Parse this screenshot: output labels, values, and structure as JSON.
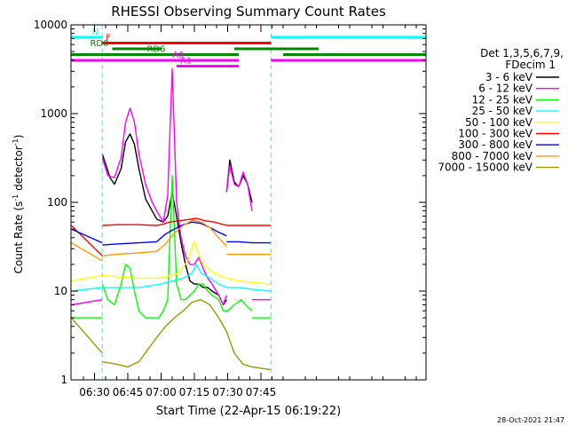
{
  "chart_data": {
    "type": "line",
    "title": "RHESSI Observing Summary Count Rates",
    "xlabel": "Start Time (22-Apr-15 06:19:22)",
    "ylabel_parts": {
      "main": "Count Rate (s",
      "sup1": "-1",
      "mid": " detector",
      "sup2": "-1",
      "end": ")"
    },
    "x_units": "minutes of day",
    "xlim": [
      379.4,
      539.4
    ],
    "ylim": [
      1,
      10000
    ],
    "y_scale": "log",
    "x_ticks": [
      {
        "value": 390,
        "label": "06:30"
      },
      {
        "value": 405,
        "label": "06:45"
      },
      {
        "value": 420,
        "label": "07:00"
      },
      {
        "value": 435,
        "label": "07:15"
      },
      {
        "value": 450,
        "label": "07:30"
      },
      {
        "value": 465,
        "label": "07:45"
      }
    ],
    "y_ticks": [
      {
        "value": 1,
        "label": "1"
      },
      {
        "value": 10,
        "label": "10"
      },
      {
        "value": 100,
        "label": "100"
      },
      {
        "value": 1000,
        "label": "1000"
      },
      {
        "value": 10000,
        "label": "10000"
      }
    ],
    "legend": {
      "placement": "right",
      "header": [
        "Det 1,3,5,6,7,9,",
        "FDecim 1"
      ]
    },
    "series": [
      {
        "name": "3 - 6 keV",
        "color": "#000000",
        "points": [
          [
            393.5,
            350
          ],
          [
            397,
            190
          ],
          [
            399,
            160
          ],
          [
            402,
            240
          ],
          [
            404,
            480
          ],
          [
            406,
            590
          ],
          [
            408,
            450
          ],
          [
            410,
            240
          ],
          [
            413,
            110
          ],
          [
            416,
            80
          ],
          [
            418,
            65
          ],
          [
            421,
            60
          ],
          [
            423,
            70
          ],
          [
            425,
            130
          ],
          [
            427,
            70
          ],
          [
            429,
            35
          ],
          [
            431,
            20
          ],
          [
            433,
            13
          ],
          [
            435,
            12
          ],
          [
            437,
            12
          ],
          [
            439,
            11
          ],
          [
            441,
            11
          ],
          [
            443,
            10
          ],
          [
            446,
            9
          ],
          [
            448,
            7
          ],
          [
            449.5,
            8
          ]
        ]
      },
      {
        "name": "3 - 6 keV",
        "color": "#000000",
        "points": [
          [
            449.5,
            130
          ],
          [
            451,
            300
          ],
          [
            453,
            170
          ],
          [
            455,
            150
          ],
          [
            457,
            200
          ],
          [
            459,
            160
          ],
          [
            461,
            100
          ]
        ]
      },
      {
        "name": "6 - 12 keV",
        "color": "#ff00ff",
        "points": [
          [
            393.5,
            320
          ],
          [
            396,
            200
          ],
          [
            399,
            190
          ],
          [
            402,
            320
          ],
          [
            404,
            800
          ],
          [
            406,
            1150
          ],
          [
            408,
            800
          ],
          [
            410,
            350
          ],
          [
            413,
            160
          ],
          [
            416,
            100
          ],
          [
            418,
            80
          ],
          [
            421,
            60
          ],
          [
            423,
            120
          ],
          [
            425,
            3200
          ],
          [
            427,
            100
          ],
          [
            429,
            40
          ],
          [
            431,
            25
          ],
          [
            433,
            20
          ],
          [
            435,
            20
          ],
          [
            437,
            24
          ],
          [
            439,
            18
          ],
          [
            441,
            14
          ],
          [
            443,
            12
          ],
          [
            446,
            9
          ],
          [
            448,
            7
          ],
          [
            449.5,
            9
          ]
        ]
      },
      {
        "name": "6 - 12 keV",
        "color": "#ff00ff",
        "points": [
          [
            449.5,
            130
          ],
          [
            451,
            260
          ],
          [
            453,
            160
          ],
          [
            455,
            150
          ],
          [
            457,
            220
          ],
          [
            459,
            160
          ],
          [
            461,
            80
          ]
        ]
      },
      {
        "name": "6 - 12 keV",
        "color": "#ff00ff",
        "points": [
          [
            461,
            8
          ],
          [
            469.5,
            8
          ]
        ]
      },
      {
        "name": "6 - 12 keV",
        "color": "#ff00ff",
        "points": [
          [
            379.5,
            7
          ],
          [
            393.5,
            8
          ]
        ]
      },
      {
        "name": "12 - 25 keV",
        "color": "#00ff00",
        "points": [
          [
            393.5,
            12
          ],
          [
            396,
            8
          ],
          [
            399,
            7
          ],
          [
            402,
            12
          ],
          [
            404,
            20
          ],
          [
            406,
            18
          ],
          [
            408,
            10
          ],
          [
            410,
            6
          ],
          [
            413,
            5
          ],
          [
            416,
            5
          ],
          [
            419,
            5
          ],
          [
            421,
            6
          ],
          [
            423,
            8
          ],
          [
            425,
            200
          ],
          [
            427,
            12
          ],
          [
            429,
            8
          ],
          [
            431,
            8
          ],
          [
            433,
            9
          ],
          [
            435,
            10
          ],
          [
            437,
            12
          ],
          [
            439,
            12
          ],
          [
            441,
            10
          ],
          [
            443,
            9
          ],
          [
            446,
            8
          ],
          [
            448,
            6
          ],
          [
            450,
            6
          ],
          [
            453,
            7
          ],
          [
            456,
            8
          ],
          [
            458,
            7
          ],
          [
            461,
            6
          ]
        ]
      },
      {
        "name": "12 - 25 keV",
        "color": "#00ff00",
        "points": [
          [
            461,
            5
          ],
          [
            469.5,
            5
          ]
        ]
      },
      {
        "name": "12 - 25 keV",
        "color": "#00ff00",
        "points": [
          [
            379.5,
            5
          ],
          [
            393.5,
            5
          ]
        ]
      },
      {
        "name": "25 - 50 keV",
        "color": "#00ffff",
        "points": [
          [
            379.5,
            10
          ],
          [
            393.5,
            11
          ],
          [
            400,
            11
          ],
          [
            410,
            11
          ],
          [
            420,
            12
          ],
          [
            425,
            13
          ],
          [
            430,
            14
          ],
          [
            434,
            16
          ],
          [
            436,
            20
          ],
          [
            438,
            16
          ],
          [
            442,
            14
          ],
          [
            446,
            12
          ],
          [
            449.5,
            11
          ],
          [
            455,
            11
          ],
          [
            461,
            10.5
          ],
          [
            469.5,
            10
          ]
        ]
      },
      {
        "name": "50 - 100 keV",
        "color": "#ffff00",
        "points": [
          [
            379.5,
            13
          ],
          [
            393.5,
            15
          ],
          [
            400,
            14.5
          ],
          [
            410,
            14
          ],
          [
            420,
            14
          ],
          [
            428,
            16
          ],
          [
            432,
            22
          ],
          [
            435,
            36
          ],
          [
            438,
            22
          ],
          [
            442,
            17
          ],
          [
            446,
            15
          ],
          [
            449.5,
            14
          ],
          [
            455,
            13
          ],
          [
            461,
            12.5
          ],
          [
            469.5,
            12
          ]
        ]
      },
      {
        "name": "100 - 300 keV",
        "color": "#ff0000",
        "points": [
          [
            379.5,
            55
          ],
          [
            393.5,
            25
          ]
        ]
      },
      {
        "name": "100 - 300 keV",
        "color": "#ff0000",
        "points": [
          [
            393.5,
            55
          ],
          [
            400,
            56
          ],
          [
            410,
            56
          ],
          [
            418,
            55
          ],
          [
            420,
            56
          ],
          [
            424,
            60
          ],
          [
            428,
            62
          ],
          [
            432,
            64
          ],
          [
            436,
            66
          ],
          [
            440,
            62
          ],
          [
            444,
            60
          ],
          [
            449.5,
            55
          ]
        ]
      },
      {
        "name": "100 - 300 keV",
        "color": "#ff0000",
        "points": [
          [
            449.5,
            55
          ],
          [
            455,
            55
          ],
          [
            461,
            55
          ],
          [
            469.5,
            55
          ]
        ]
      },
      {
        "name": "300 - 800 keV",
        "color": "#0000ff",
        "points": [
          [
            379.5,
            50
          ],
          [
            393.5,
            35
          ]
        ]
      },
      {
        "name": "300 - 800 keV",
        "color": "#0000ff",
        "points": [
          [
            393.5,
            33
          ],
          [
            400,
            34
          ],
          [
            410,
            35
          ],
          [
            418,
            36
          ],
          [
            422,
            44
          ],
          [
            426,
            50
          ],
          [
            430,
            56
          ],
          [
            434,
            60
          ],
          [
            438,
            58
          ],
          [
            442,
            52
          ],
          [
            446,
            46
          ],
          [
            449.5,
            42
          ]
        ]
      },
      {
        "name": "300 - 800 keV",
        "color": "#0000ff",
        "points": [
          [
            449.5,
            36
          ],
          [
            455,
            36
          ],
          [
            461,
            35
          ],
          [
            469.5,
            35
          ]
        ]
      },
      {
        "name": "800 - 7000 keV",
        "color": "#ff9900",
        "points": [
          [
            379.5,
            35
          ],
          [
            393.5,
            22
          ]
        ]
      },
      {
        "name": "800 - 7000 keV",
        "color": "#ff9900",
        "points": [
          [
            393.5,
            25
          ],
          [
            400,
            26
          ],
          [
            410,
            27
          ],
          [
            418,
            28
          ],
          [
            422,
            34
          ],
          [
            426,
            45
          ],
          [
            430,
            55
          ],
          [
            434,
            63
          ],
          [
            438,
            60
          ],
          [
            442,
            52
          ],
          [
            446,
            40
          ],
          [
            449.5,
            32
          ]
        ]
      },
      {
        "name": "800 - 7000 keV",
        "color": "#ff9900",
        "points": [
          [
            449.5,
            26
          ],
          [
            455,
            26
          ],
          [
            461,
            26
          ],
          [
            469.5,
            26
          ]
        ]
      },
      {
        "name": "7000 - 15000 keV",
        "color": "#999900",
        "points": [
          [
            379.5,
            5
          ],
          [
            393.5,
            2
          ]
        ]
      },
      {
        "name": "7000 - 15000 keV",
        "color": "#999900",
        "points": [
          [
            393.5,
            1.6
          ],
          [
            400,
            1.5
          ],
          [
            405,
            1.4
          ],
          [
            410,
            1.6
          ],
          [
            414,
            2.2
          ],
          [
            418,
            3
          ],
          [
            422,
            4
          ],
          [
            426,
            5
          ],
          [
            430,
            6
          ],
          [
            434,
            7.5
          ],
          [
            438,
            8
          ],
          [
            442,
            7
          ],
          [
            446,
            5
          ],
          [
            449.5,
            3.5
          ],
          [
            453,
            2
          ],
          [
            457,
            1.5
          ],
          [
            461,
            1.4
          ],
          [
            469.5,
            1.3
          ]
        ]
      }
    ],
    "flags": [
      {
        "name": "N",
        "color": "#00ffff",
        "segments": [
          [
            379.5,
            393.5
          ],
          [
            469.5,
            539.4
          ]
        ],
        "label_at": 393.5
      },
      {
        "name": "F",
        "color": "#ff0000",
        "segments": [
          [
            393.5,
            469.5
          ]
        ],
        "label_at": 393.5
      },
      {
        "name": "RD0",
        "color": "#008800",
        "segments": [
          [
            398,
            420
          ],
          [
            453,
            491
          ]
        ],
        "label_at": 398
      },
      {
        "name": "RD6",
        "color": "#008800",
        "segments": [
          [
            379.5,
            412
          ],
          [
            412,
            455
          ],
          [
            475,
            539.4
          ]
        ],
        "label_at": 412
      },
      {
        "name": "A0",
        "color": "#ff00ff",
        "segments": [
          [
            379.5,
            455
          ],
          [
            469.5,
            539.4
          ]
        ],
        "label_at": 432
      },
      {
        "name": "A1",
        "color": "#ff00ff",
        "segments": [
          [
            427,
            455
          ]
        ],
        "label_at": 427
      }
    ],
    "gaps": [
      393.5,
      469.5
    ]
  },
  "footer": {
    "timestamp": "28-Oct-2021 21:47"
  }
}
